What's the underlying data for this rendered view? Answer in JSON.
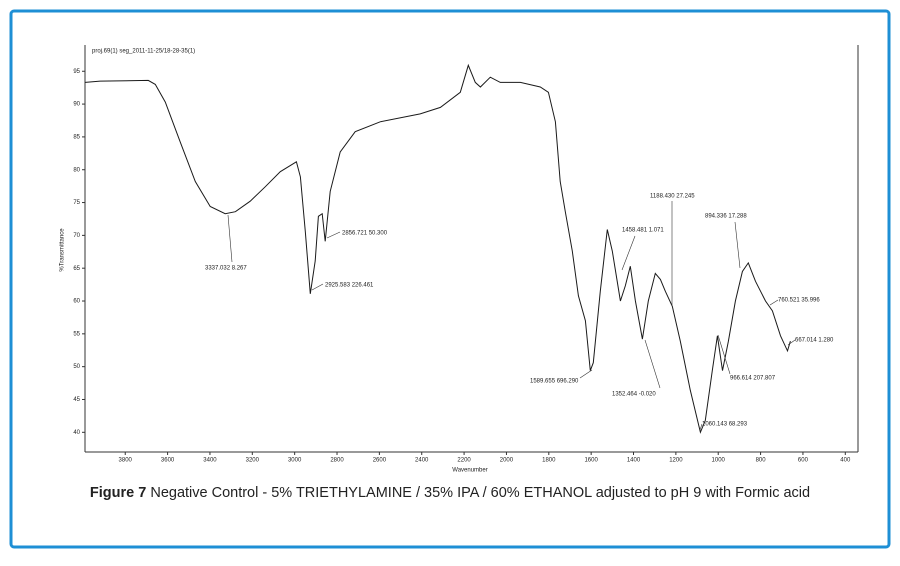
{
  "chart_data": {
    "type": "line",
    "header": "proj.69(1) seg_2011-11-25/18-28-35(1)",
    "xlabel": "Wavenumber",
    "ylabel": "%Transmittance",
    "caption_label": "Figure 7",
    "caption": "Negative Control - 5% TRIETHYLAMINE / 35% IPA / 60% ETHANOL adjusted to pH 9 with Formic acid",
    "xlim": [
      3990,
      340
    ],
    "ylim": [
      37,
      99
    ],
    "xticks": [
      3800,
      3600,
      3400,
      3200,
      3000,
      2800,
      2600,
      2400,
      2200,
      2000,
      1800,
      1600,
      1400,
      1200,
      1000,
      800,
      600,
      400
    ],
    "yticks": [
      40,
      45,
      50,
      55,
      60,
      65,
      70,
      75,
      80,
      85,
      90,
      95
    ],
    "x": [
      3989,
      3918,
      3691,
      3658,
      3611,
      3540,
      3469,
      3399,
      3328,
      3280,
      3210,
      3139,
      3068,
      2992,
      2973,
      2950,
      2926,
      2903,
      2888,
      2870,
      2856,
      2832,
      2785,
      2714,
      2596,
      2407,
      2312,
      2218,
      2180,
      2147,
      2123,
      2076,
      2029,
      1934,
      1840,
      1802,
      1769,
      1746,
      1722,
      1689,
      1660,
      1627,
      1604,
      1590,
      1557,
      1524,
      1500,
      1462,
      1439,
      1415,
      1391,
      1358,
      1330,
      1297,
      1273,
      1250,
      1217,
      1179,
      1132,
      1084,
      1061,
      1028,
      1004,
      980,
      952,
      919,
      886,
      858,
      824,
      777,
      744,
      706,
      673,
      659
    ],
    "series": [
      {
        "color": "#1a1a1a",
        "values": [
          93.3,
          93.5,
          93.6,
          93.0,
          90.3,
          84.2,
          78.2,
          74.4,
          73.3,
          73.6,
          75.2,
          77.4,
          79.7,
          81.2,
          78.9,
          70.6,
          61.1,
          66.1,
          72.9,
          73.3,
          69.1,
          76.7,
          82.7,
          85.8,
          87.3,
          88.5,
          89.5,
          91.8,
          95.9,
          93.3,
          92.6,
          94.1,
          93.3,
          93.3,
          92.6,
          91.8,
          87.3,
          78.2,
          73.6,
          67.6,
          60.8,
          57.0,
          49.4,
          50.6,
          61.5,
          70.9,
          67.6,
          60.0,
          62.3,
          65.3,
          60.0,
          54.2,
          60.0,
          64.2,
          63.3,
          61.5,
          59.2,
          53.9,
          46.4,
          40.0,
          41.8,
          49.4,
          54.7,
          49.4,
          53.9,
          60.0,
          64.5,
          65.8,
          63.0,
          60.0,
          58.5,
          54.7,
          52.4,
          53.9
        ]
      }
    ],
    "annotations": [
      "3337.032 8.267",
      "2925.583 226.461",
      "2856.721 50.300",
      "1589.655 696.290",
      "1458.481 1.071",
      "1352.464 -0.020",
      "1188.430 27.245",
      "1060.143 68.293",
      "966.614 207.807",
      "894.336 17.288",
      "760.521 35.996",
      "667.014 1.280"
    ],
    "frame_color": "#1e8fd5"
  }
}
